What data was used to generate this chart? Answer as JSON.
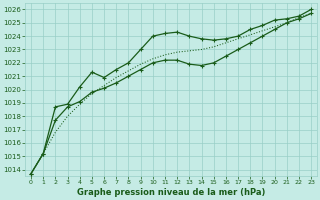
{
  "x": [
    0,
    1,
    2,
    3,
    4,
    5,
    6,
    7,
    8,
    9,
    10,
    11,
    12,
    13,
    14,
    15,
    16,
    17,
    18,
    19,
    20,
    21,
    22,
    23
  ],
  "y_dotted": [
    1013.7,
    1015.2,
    1016.8,
    1018.0,
    1018.9,
    1019.7,
    1020.3,
    1020.9,
    1021.4,
    1021.9,
    1022.3,
    1022.6,
    1022.8,
    1022.9,
    1023.0,
    1023.2,
    1023.5,
    1023.8,
    1024.1,
    1024.4,
    1024.7,
    1025.0,
    1025.4,
    1025.7
  ],
  "y_line2": [
    1013.7,
    1015.2,
    1017.7,
    1018.7,
    1019.1,
    1019.8,
    1020.1,
    1020.5,
    1021.0,
    1021.5,
    1022.0,
    1022.2,
    1022.2,
    1021.9,
    1021.8,
    1022.0,
    1022.5,
    1023.0,
    1023.5,
    1024.0,
    1024.5,
    1025.0,
    1025.3,
    1025.7
  ],
  "y_line3": [
    1013.7,
    1015.2,
    1018.7,
    1018.9,
    1020.2,
    1021.3,
    1020.9,
    1021.5,
    1022.0,
    1023.0,
    1024.0,
    1024.2,
    1024.3,
    1024.0,
    1023.8,
    1023.7,
    1023.8,
    1024.0,
    1024.5,
    1024.8,
    1025.2,
    1025.3,
    1025.5,
    1026.0
  ],
  "bg_color": "#c5ebe5",
  "grid_color": "#99cfc7",
  "line_color": "#1a5c1a",
  "xlabel": "Graphe pression niveau de la mer (hPa)",
  "ylim_min": 1013.5,
  "ylim_max": 1026.5,
  "ytick_min": 1014,
  "ytick_max": 1026
}
